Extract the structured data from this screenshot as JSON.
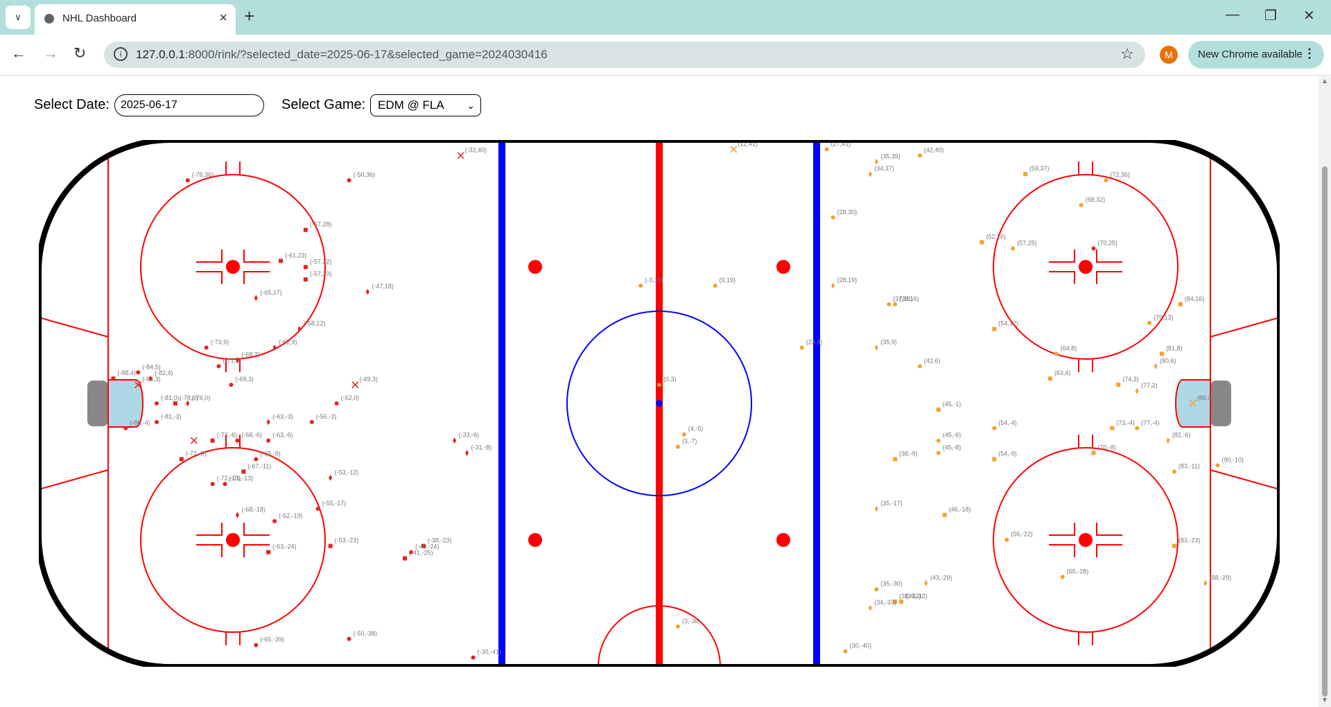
{
  "browser": {
    "tab_title": "NHL Dashboard",
    "url_host": "127.0.0.1",
    "url_rest": ":8000/rink/?selected_date=2025-06-17&selected_game=2024030416",
    "avatar_letter": "M",
    "update_label": "New Chrome available"
  },
  "controls": {
    "date_label": "Select Date:",
    "date_value": "2025-06-17",
    "game_label": "Select Game:",
    "game_value": "EDM @ FLA"
  },
  "colors": {
    "home": "#e8201e",
    "away": "#f5a030",
    "blue_line": "#0000ff",
    "red_line": "#ff0000",
    "crease": "#add8e6"
  },
  "chart_data": {
    "type": "scatter",
    "xlim": [
      -100,
      100
    ],
    "ylim": [
      -42.5,
      42.5
    ],
    "shots": [
      {
        "team": "home",
        "x": -76,
        "y": 36,
        "shape": "circle",
        "label": "(-76,36)"
      },
      {
        "team": "home",
        "x": -50,
        "y": 36,
        "shape": "circle",
        "label": "(-50,36)"
      },
      {
        "team": "home",
        "x": -32,
        "y": 40,
        "shape": "x",
        "label": "(-32,40)"
      },
      {
        "team": "home",
        "x": -57,
        "y": 28,
        "shape": "square",
        "label": "(-57,28)"
      },
      {
        "team": "home",
        "x": -61,
        "y": 23,
        "shape": "square",
        "label": "(-61,23)"
      },
      {
        "team": "home",
        "x": -57,
        "y": 22,
        "shape": "square",
        "label": "(-57,22)"
      },
      {
        "team": "home",
        "x": -57,
        "y": 20,
        "shape": "square",
        "label": "(-57,20)"
      },
      {
        "team": "home",
        "x": -47,
        "y": 18,
        "shape": "diamond",
        "label": "(-47,18)"
      },
      {
        "team": "home",
        "x": -65,
        "y": 17,
        "shape": "diamond",
        "label": "(-65,17)"
      },
      {
        "team": "home",
        "x": -58,
        "y": 12,
        "shape": "diamond",
        "label": "(-58,12)"
      },
      {
        "team": "home",
        "x": -73,
        "y": 9,
        "shape": "circle",
        "label": "(-73,9)"
      },
      {
        "team": "home",
        "x": -62,
        "y": 9,
        "shape": "diamond",
        "label": "(-62,9)"
      },
      {
        "team": "home",
        "x": -68,
        "y": 7,
        "shape": "diamond",
        "label": "(-68,7)"
      },
      {
        "team": "home",
        "x": -71,
        "y": 6,
        "shape": "circle",
        "label": "(-71,6)"
      },
      {
        "team": "home",
        "x": -84,
        "y": 5,
        "shape": "circle",
        "label": "(-84,5)"
      },
      {
        "team": "home",
        "x": -88,
        "y": 4,
        "shape": "square",
        "label": "(-88,4)"
      },
      {
        "team": "home",
        "x": -82,
        "y": 4,
        "shape": "diamond",
        "label": "(-82,4)"
      },
      {
        "team": "home",
        "x": -84,
        "y": 3,
        "shape": "x",
        "label": "(-84,3)"
      },
      {
        "team": "home",
        "x": -69,
        "y": 3,
        "shape": "circle",
        "label": "(-69,3)"
      },
      {
        "team": "home",
        "x": -49,
        "y": 3,
        "shape": "x",
        "label": "(-49,3)"
      },
      {
        "team": "home",
        "x": -81,
        "y": 0,
        "shape": "circle",
        "label": "(-81,0)"
      },
      {
        "team": "home",
        "x": -78,
        "y": 0,
        "shape": "square",
        "label": "(-78,0)"
      },
      {
        "team": "home",
        "x": -76,
        "y": 0,
        "shape": "diamond",
        "label": "(-76,0)"
      },
      {
        "team": "home",
        "x": -52,
        "y": 0,
        "shape": "circle",
        "label": "(-52,0)"
      },
      {
        "team": "home",
        "x": -81,
        "y": -3,
        "shape": "circle",
        "label": "(-81,-3)"
      },
      {
        "team": "home",
        "x": -63,
        "y": -3,
        "shape": "diamond",
        "label": "(-63,-3)"
      },
      {
        "team": "home",
        "x": -56,
        "y": -3,
        "shape": "circle",
        "label": "(-56,-3)"
      },
      {
        "team": "home",
        "x": -86,
        "y": -4,
        "shape": "circle",
        "label": "(-86,-4)"
      },
      {
        "team": "home",
        "x": -33,
        "y": -6,
        "shape": "diamond",
        "label": "(-33,-6)"
      },
      {
        "team": "home",
        "x": -72,
        "y": -6,
        "shape": "square",
        "label": "(-72,-6)"
      },
      {
        "team": "home",
        "x": -68,
        "y": -6,
        "shape": "circle",
        "label": "(-68,-6)"
      },
      {
        "team": "home",
        "x": -63,
        "y": -6,
        "shape": "circle",
        "label": "(-63,-6)"
      },
      {
        "team": "home",
        "x": -75,
        "y": -6,
        "shape": "x",
        "label": ""
      },
      {
        "team": "home",
        "x": -31,
        "y": -8,
        "shape": "diamond",
        "label": "(-31,-8)"
      },
      {
        "team": "home",
        "x": -77,
        "y": -9,
        "shape": "square",
        "label": "(-77,-9)"
      },
      {
        "team": "home",
        "x": -65,
        "y": -9,
        "shape": "circle",
        "label": "(-65,-9)"
      },
      {
        "team": "home",
        "x": -67,
        "y": -11,
        "shape": "square",
        "label": "(-67,-11)"
      },
      {
        "team": "home",
        "x": -53,
        "y": -12,
        "shape": "diamond",
        "label": "(-53,-12)"
      },
      {
        "team": "home",
        "x": -72,
        "y": -13,
        "shape": "circle",
        "label": "(-72,-13)"
      },
      {
        "team": "home",
        "x": -70,
        "y": -13,
        "shape": "circle",
        "label": "(-70,-13)"
      },
      {
        "team": "home",
        "x": -68,
        "y": -18,
        "shape": "diamond",
        "label": "(-68,-18)"
      },
      {
        "team": "home",
        "x": -55,
        "y": -17,
        "shape": "circle",
        "label": "(-55,-17)"
      },
      {
        "team": "home",
        "x": -62,
        "y": -19,
        "shape": "circle",
        "label": "(-62,-19)"
      },
      {
        "team": "home",
        "x": -53,
        "y": -23,
        "shape": "square",
        "label": "(-53,-23)"
      },
      {
        "team": "home",
        "x": -63,
        "y": -24,
        "shape": "square",
        "label": "(-63,-24)"
      },
      {
        "team": "home",
        "x": -38,
        "y": -23,
        "shape": "square",
        "label": "(-38,-23)"
      },
      {
        "team": "home",
        "x": -40,
        "y": -24,
        "shape": "circle",
        "label": "(-40,-24)"
      },
      {
        "team": "home",
        "x": -41,
        "y": -25,
        "shape": "square",
        "label": "(-41,-25)"
      },
      {
        "team": "home",
        "x": -65,
        "y": -39,
        "shape": "circle",
        "label": "(-65,-39)"
      },
      {
        "team": "home",
        "x": -50,
        "y": -38,
        "shape": "circle",
        "label": "(-50,-38)"
      },
      {
        "team": "home",
        "x": -30,
        "y": -41,
        "shape": "circle",
        "label": "(-30,-41)"
      },
      {
        "team": "away",
        "x": 12,
        "y": 41,
        "shape": "x",
        "label": "(12,41)"
      },
      {
        "team": "away",
        "x": 27,
        "y": 41,
        "shape": "circle",
        "label": "(27,41)"
      },
      {
        "team": "away",
        "x": 35,
        "y": 39,
        "shape": "diamond",
        "label": "(35,39)"
      },
      {
        "team": "away",
        "x": 42,
        "y": 40,
        "shape": "circle",
        "label": "(42,40)"
      },
      {
        "team": "away",
        "x": 34,
        "y": 37,
        "shape": "diamond",
        "label": "(34,37)"
      },
      {
        "team": "away",
        "x": 59,
        "y": 37,
        "shape": "square",
        "label": "(59,37)"
      },
      {
        "team": "away",
        "x": 72,
        "y": 36,
        "shape": "circle",
        "label": "(72,36)"
      },
      {
        "team": "away",
        "x": 68,
        "y": 32,
        "shape": "circle",
        "label": "(68,32)"
      },
      {
        "team": "away",
        "x": 28,
        "y": 30,
        "shape": "circle",
        "label": "(28,30)"
      },
      {
        "team": "away",
        "x": 52,
        "y": 26,
        "shape": "square",
        "label": "(52,26)"
      },
      {
        "team": "away",
        "x": 57,
        "y": 25,
        "shape": "circle",
        "label": "(57,25)"
      },
      {
        "team": "away",
        "x": 70,
        "y": 25,
        "shape": "circle",
        "color": "#e8201e",
        "label": "(70,25)"
      },
      {
        "team": "away",
        "x": -3,
        "y": 19,
        "shape": "circle",
        "label": "(-3,19)"
      },
      {
        "team": "away",
        "x": 9,
        "y": 19,
        "shape": "circle",
        "label": "(9,19)"
      },
      {
        "team": "away",
        "x": 28,
        "y": 19,
        "shape": "diamond",
        "label": "(28,19)"
      },
      {
        "team": "away",
        "x": 37,
        "y": 16,
        "shape": "circle",
        "label": "(37,16)"
      },
      {
        "team": "away",
        "x": 38,
        "y": 16,
        "shape": "circle",
        "label": "(38,16)"
      },
      {
        "team": "away",
        "x": 84,
        "y": 16,
        "shape": "square",
        "label": "(84,16)"
      },
      {
        "team": "away",
        "x": 79,
        "y": 13,
        "shape": "circle",
        "label": "(79,13)"
      },
      {
        "team": "away",
        "x": 54,
        "y": 12,
        "shape": "square",
        "label": "(54,12)"
      },
      {
        "team": "away",
        "x": 23,
        "y": 9,
        "shape": "circle",
        "label": "(23,9)"
      },
      {
        "team": "away",
        "x": 35,
        "y": 9,
        "shape": "diamond",
        "label": "(35,9)"
      },
      {
        "team": "away",
        "x": 64,
        "y": 8,
        "shape": "circle",
        "label": "(64,8)"
      },
      {
        "team": "away",
        "x": 81,
        "y": 8,
        "shape": "square",
        "label": "(81,8)"
      },
      {
        "team": "away",
        "x": 42,
        "y": 6,
        "shape": "circle",
        "label": "(42,6)"
      },
      {
        "team": "away",
        "x": 80,
        "y": 6,
        "shape": "diamond",
        "label": "(80,6)"
      },
      {
        "team": "away",
        "x": 63,
        "y": 4,
        "shape": "square",
        "label": "(63,4)"
      },
      {
        "team": "away",
        "x": 74,
        "y": 3,
        "shape": "square",
        "label": "(74,3)"
      },
      {
        "team": "away",
        "x": 0,
        "y": 3,
        "shape": "circle",
        "label": "(0,3)"
      },
      {
        "team": "away",
        "x": 77,
        "y": 2,
        "shape": "diamond",
        "label": "(77,2)"
      },
      {
        "team": "away",
        "x": 45,
        "y": -1,
        "shape": "square",
        "label": "(45,-1)"
      },
      {
        "team": "away",
        "x": 86,
        "y": 0,
        "shape": "x",
        "label": "(86,0)"
      },
      {
        "team": "away",
        "x": 54,
        "y": -4,
        "shape": "circle",
        "label": "(54,-4)"
      },
      {
        "team": "away",
        "x": 73,
        "y": -4,
        "shape": "square",
        "label": "(73,-4)"
      },
      {
        "team": "away",
        "x": 77,
        "y": -4,
        "shape": "circle",
        "label": "(77,-4)"
      },
      {
        "team": "away",
        "x": 4,
        "y": -5,
        "shape": "circle",
        "label": "(4,-5)"
      },
      {
        "team": "away",
        "x": 45,
        "y": -6,
        "shape": "circle",
        "label": "(45,-6)"
      },
      {
        "team": "away",
        "x": 82,
        "y": -6,
        "shape": "diamond",
        "label": "(82,-6)"
      },
      {
        "team": "away",
        "x": 3,
        "y": -7,
        "shape": "circle",
        "label": "(3,-7)"
      },
      {
        "team": "away",
        "x": 45,
        "y": -8,
        "shape": "circle",
        "label": "(45,-8)"
      },
      {
        "team": "away",
        "x": 70,
        "y": -8,
        "shape": "square",
        "label": "(70,-8)"
      },
      {
        "team": "away",
        "x": 38,
        "y": -9,
        "shape": "square",
        "label": "(38,-9)"
      },
      {
        "team": "away",
        "x": 54,
        "y": -9,
        "shape": "square",
        "label": "(54,-9)"
      },
      {
        "team": "away",
        "x": 90,
        "y": -10,
        "shape": "circle",
        "label": "(90,-10)"
      },
      {
        "team": "away",
        "x": 83,
        "y": -11,
        "shape": "circle",
        "label": "(83,-11)"
      },
      {
        "team": "away",
        "x": 35,
        "y": -17,
        "shape": "diamond",
        "label": "(35,-17)"
      },
      {
        "team": "away",
        "x": 46,
        "y": -18,
        "shape": "square",
        "label": "(46,-18)"
      },
      {
        "team": "away",
        "x": 56,
        "y": -22,
        "shape": "circle",
        "label": "(56,-22)"
      },
      {
        "team": "away",
        "x": 83,
        "y": -23,
        "shape": "square",
        "label": "(83,-23)"
      },
      {
        "team": "away",
        "x": 65,
        "y": -28,
        "shape": "circle",
        "label": "(65,-28)"
      },
      {
        "team": "away",
        "x": 88,
        "y": -29,
        "shape": "diamond",
        "label": "(88,-29)"
      },
      {
        "team": "away",
        "x": 43,
        "y": -29,
        "shape": "diamond",
        "label": "(43,-29)"
      },
      {
        "team": "away",
        "x": 35,
        "y": -30,
        "shape": "circle",
        "label": "(35,-30)"
      },
      {
        "team": "away",
        "x": 38,
        "y": -32,
        "shape": "square",
        "label": "(38,-32)"
      },
      {
        "team": "away",
        "x": 39,
        "y": -32,
        "shape": "square",
        "label": "(39,-32)"
      },
      {
        "team": "away",
        "x": 34,
        "y": -33,
        "shape": "diamond",
        "label": "(34,-33)"
      },
      {
        "team": "away",
        "x": 3,
        "y": -36,
        "shape": "circle",
        "label": "(3,-36)"
      },
      {
        "team": "away",
        "x": 30,
        "y": -40,
        "shape": "circle",
        "label": "(30,-40)"
      }
    ]
  }
}
